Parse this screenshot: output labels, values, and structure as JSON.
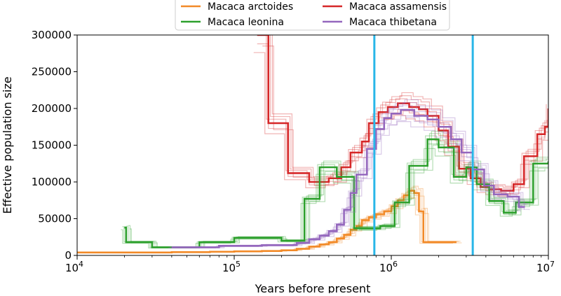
{
  "chart_data": {
    "type": "line",
    "title": "",
    "xlabel": "Years before present",
    "ylabel": "Effective population size",
    "xscale": "log",
    "xlim": [
      10000,
      10000000
    ],
    "ylim": [
      0,
      300000
    ],
    "x_ticks": [
      {
        "value": 10000,
        "base": "10",
        "exp": "4"
      },
      {
        "value": 100000,
        "base": "10",
        "exp": "5"
      },
      {
        "value": 1000000,
        "base": "10",
        "exp": "6"
      },
      {
        "value": 10000000,
        "base": "10",
        "exp": "7"
      }
    ],
    "y_ticks": [
      {
        "value": 0,
        "label": "0"
      },
      {
        "value": 50000,
        "label": "50000"
      },
      {
        "value": 100000,
        "label": "100000"
      },
      {
        "value": 150000,
        "label": "150000"
      },
      {
        "value": 200000,
        "label": "200000"
      },
      {
        "value": 250000,
        "label": "250000"
      },
      {
        "value": 300000,
        "label": "300000"
      }
    ],
    "legend_position": "top-center",
    "legend": [
      {
        "name": "Macaca arctoides",
        "color": "#f28a28"
      },
      {
        "name": "Macaca assamensis",
        "color": "#d62728"
      },
      {
        "name": "Macaca leonina",
        "color": "#2ca02c"
      },
      {
        "name": "Macaca thibetana",
        "color": "#9467bd"
      }
    ],
    "vlines": [
      {
        "x": 780000,
        "color": "#29b6e8"
      },
      {
        "x": 3300000,
        "color": "#29b6e8"
      }
    ],
    "series": [
      {
        "name": "Macaca arctoides",
        "color": "#f28a28",
        "x": [
          10000,
          20000,
          40000,
          70000,
          100000,
          150000,
          200000,
          250000,
          300000,
          350000,
          400000,
          450000,
          500000,
          550000,
          600000,
          650000,
          720000,
          800000,
          900000,
          1000000,
          1100000,
          1200000,
          1300000,
          1400000,
          1500000,
          1600000,
          2600000
        ],
        "y": [
          4000,
          4000,
          4500,
          5000,
          5500,
          6000,
          7000,
          9000,
          12000,
          15000,
          18000,
          23000,
          28000,
          35000,
          40000,
          48000,
          52000,
          56000,
          60000,
          67000,
          75000,
          82000,
          88000,
          85000,
          60000,
          18000,
          18000
        ]
      },
      {
        "name": "Macaca assamensis",
        "color": "#d62728",
        "x": [
          140000,
          142000,
          165000,
          220000,
          300000,
          400000,
          480000,
          550000,
          650000,
          720000,
          830000,
          950000,
          1100000,
          1300000,
          1500000,
          1700000,
          2000000,
          2300000,
          2700000,
          3200000,
          3700000,
          4200000,
          5000000,
          6000000,
          7000000,
          8500000,
          9500000,
          10000000
        ],
        "y": [
          300000,
          300000,
          180000,
          112000,
          100000,
          105000,
          120000,
          140000,
          155000,
          180000,
          195000,
          202000,
          207000,
          202000,
          199000,
          190000,
          170000,
          148000,
          118000,
          105000,
          93000,
          90000,
          88000,
          97000,
          135000,
          165000,
          175000,
          200000
        ]
      },
      {
        "name": "Macaca leonina",
        "color": "#2ca02c",
        "x": [
          20000,
          20500,
          30000,
          60000,
          100000,
          200000,
          280000,
          350000,
          450000,
          580000,
          850000,
          1050000,
          1300000,
          1700000,
          2000000,
          2500000,
          3000000,
          3500000,
          4200000,
          5200000,
          6200000,
          7000000,
          8000000,
          10000000
        ],
        "y": [
          38000,
          18000,
          11000,
          18000,
          24000,
          20000,
          77000,
          120000,
          107000,
          37000,
          40000,
          72000,
          122000,
          158000,
          147000,
          107000,
          120000,
          97000,
          74000,
          58000,
          72000,
          72000,
          125000,
          128000
        ]
      },
      {
        "name": "Macaca thibetana",
        "color": "#9467bd",
        "x": [
          40000,
          80000,
          150000,
          250000,
          300000,
          350000,
          400000,
          450000,
          500000,
          550000,
          600000,
          700000,
          800000,
          900000,
          1000000,
          1150000,
          1400000,
          1700000,
          2000000,
          2400000,
          2800000,
          3300000,
          3900000,
          4500000,
          5500000,
          6500000,
          7000000
        ],
        "y": [
          11000,
          13000,
          14000,
          17000,
          22000,
          27000,
          33000,
          42000,
          62000,
          85000,
          110000,
          145000,
          172000,
          187000,
          193000,
          198000,
          190000,
          185000,
          175000,
          158000,
          140000,
          117000,
          95000,
          83000,
          80000,
          66000,
          65000
        ]
      }
    ]
  }
}
